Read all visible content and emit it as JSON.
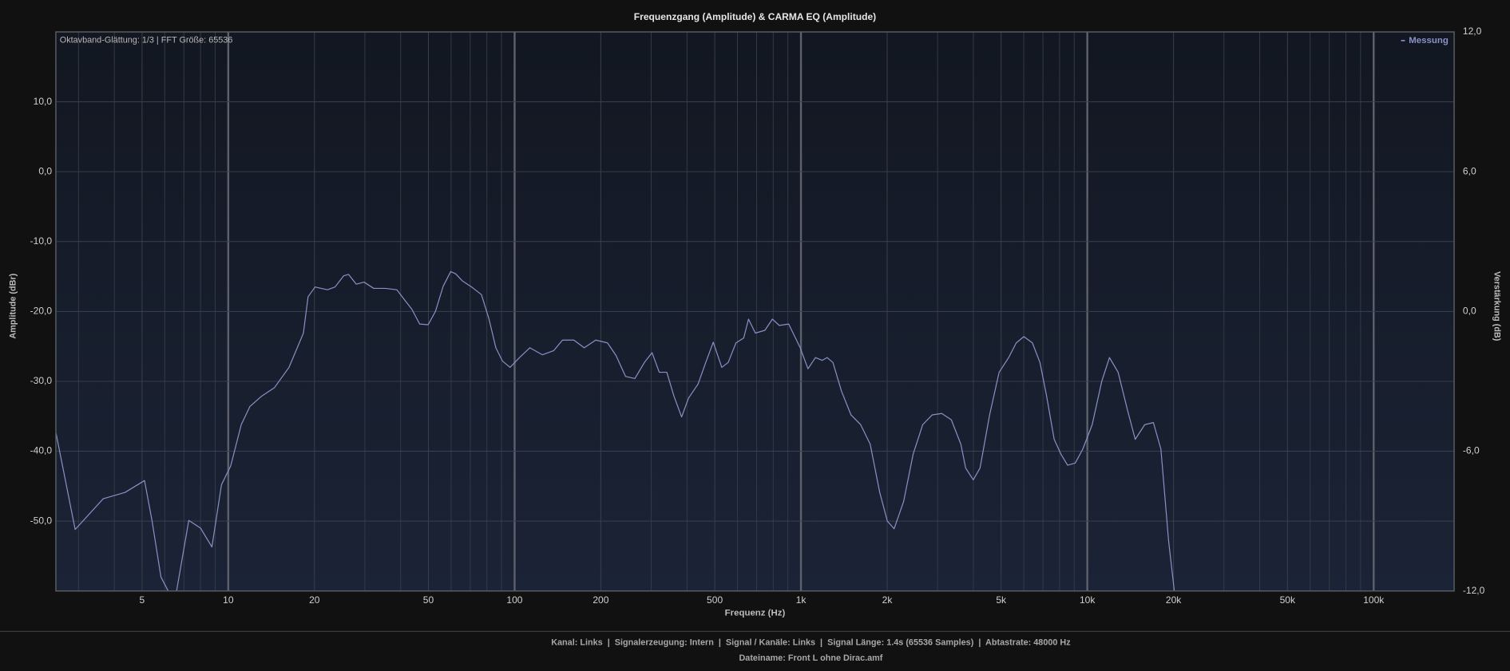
{
  "chart_data": {
    "type": "line",
    "title": "Frequenzgang (Amplitude) & CARMA EQ (Amplitude)",
    "annotation": "Oktavband-Glättung: 1/3 | FFT Größe: 65536",
    "xlabel": "Frequenz (Hz)",
    "ylabel": "Amplitude (dBr)",
    "y2label": "Verstärkung (dB)",
    "xscale": "log",
    "grid": true,
    "legend": "upper right",
    "xlim": [
      2.5,
      191000
    ],
    "xticks": [
      5,
      10,
      20,
      50,
      100,
      200,
      500,
      {
        "value": 1000,
        "label": "1k"
      },
      {
        "value": 2000,
        "label": "2k"
      },
      {
        "value": 5000,
        "label": "5k"
      },
      {
        "value": 10000,
        "label": "10k"
      },
      {
        "value": 20000,
        "label": "20k"
      },
      {
        "value": 50000,
        "label": "50k"
      },
      {
        "value": 100000,
        "label": "100k"
      }
    ],
    "xminorticks": [
      3,
      4,
      6,
      7,
      8,
      9,
      30,
      40,
      60,
      70,
      80,
      90,
      300,
      400,
      600,
      700,
      800,
      900,
      3000,
      4000,
      6000,
      7000,
      8000,
      9000,
      30000,
      40000,
      60000,
      70000,
      80000,
      90000
    ],
    "ylim": [
      -60,
      20
    ],
    "yticks": [
      {
        "value": -50,
        "label": "-50,0"
      },
      {
        "value": -40,
        "label": "-40,0"
      },
      {
        "value": -30,
        "label": "-30,0"
      },
      {
        "value": -20,
        "label": "-20,0"
      },
      {
        "value": -10,
        "label": "-10,0"
      },
      {
        "value": 0,
        "label": "0,0"
      },
      {
        "value": 10,
        "label": "10,0"
      }
    ],
    "y2lim": [
      -12,
      12
    ],
    "y2ticks": [
      {
        "value": -12,
        "label": "-12,0"
      },
      {
        "value": -6,
        "label": "-6,0"
      },
      {
        "value": 0,
        "label": "0,0"
      },
      {
        "value": 6,
        "label": "6,0"
      },
      {
        "value": 12,
        "label": "12,0"
      }
    ],
    "series": [
      {
        "name": "Messung",
        "color": "#8a91c4",
        "x": [
          2.5,
          2.92,
          3.66,
          4.36,
          5.1,
          5.42,
          5.82,
          6.17,
          6.6,
          7.28,
          8.0,
          8.77,
          9.47,
          10.2,
          11.1,
          11.9,
          13.1,
          14.5,
          16.3,
          18.3,
          19.0,
          20.1,
          22.2,
          23.6,
          25.3,
          26.3,
          28,
          29.8,
          32.2,
          35.4,
          38.8,
          41.2,
          43.8,
          46.6,
          49.9,
          52.9,
          56.3,
          59.8,
          62.2,
          65.6,
          70.8,
          76.6,
          81.4,
          86,
          90.7,
          96.4,
          104,
          113,
          125,
          137,
          147,
          161,
          175,
          192,
          211,
          226,
          244,
          263,
          284,
          302,
          320,
          340,
          360,
          383,
          405,
          437,
          465,
          494,
          529,
          557,
          593,
          631,
          656,
          693,
          748,
          795,
          840,
          906,
          994,
          1058,
          1124,
          1187,
          1234,
          1293,
          1385,
          1495,
          1616,
          1745,
          1884,
          2003,
          2115,
          2283,
          2465,
          2662,
          2874,
          3103,
          3350,
          3617,
          3759,
          3997,
          4221,
          4558,
          4921,
          5313,
          5646,
          6004,
          6430,
          6833,
          7208,
          7661,
          8084,
          8533,
          9071,
          9642,
          10400,
          11230,
          11950,
          12810,
          13830,
          14700,
          15870,
          17010,
          18070,
          19220,
          20130
        ],
        "values": [
          -37.3,
          -51.2,
          -46.8,
          -45.9,
          -44.2,
          -50,
          -58,
          -60,
          -60,
          -49.9,
          -51,
          -53.7,
          -44.8,
          -42.1,
          -36.2,
          -33.6,
          -32.1,
          -30.9,
          -28,
          -23.1,
          -17.9,
          -16.5,
          -16.9,
          -16.5,
          -14.9,
          -14.7,
          -16.1,
          -15.8,
          -16.7,
          -16.7,
          -16.9,
          -18.3,
          -19.7,
          -21.8,
          -21.9,
          -20,
          -16.4,
          -14.3,
          -14.6,
          -15.6,
          -16.5,
          -17.6,
          -21.1,
          -25.2,
          -27.1,
          -28,
          -26.6,
          -25.2,
          -26.2,
          -25.6,
          -24.1,
          -24.1,
          -25.2,
          -24.1,
          -24.5,
          -26.3,
          -29.3,
          -29.6,
          -27.3,
          -25.9,
          -28.7,
          -28.7,
          -32.1,
          -35.1,
          -32.4,
          -30.4,
          -27.3,
          -24.4,
          -28,
          -27.3,
          -24.5,
          -23.8,
          -21.1,
          -23.1,
          -22.7,
          -21.1,
          -22,
          -21.8,
          -25.2,
          -28.2,
          -26.6,
          -27,
          -26.6,
          -27.3,
          -31.4,
          -34.8,
          -36.2,
          -39,
          -45.9,
          -50,
          -51.1,
          -47.2,
          -40.4,
          -36.2,
          -34.8,
          -34.6,
          -35.5,
          -39,
          -42.4,
          -44.1,
          -42.4,
          -34.8,
          -28.7,
          -26.6,
          -24.5,
          -23.6,
          -24.5,
          -27.3,
          -32.1,
          -38.3,
          -40.4,
          -42,
          -41.7,
          -39.7,
          -36.2,
          -30,
          -26.6,
          -28.7,
          -34.2,
          -38.3,
          -36.2,
          -35.9,
          -39.7,
          -52.8,
          -60
        ]
      }
    ]
  },
  "footer": {
    "info": "Kanal: Links  |  Signalerzeugung: Intern  |  Signal / Kanäle: Links  |  Signal Länge: 1.4s (65536 Samples)  |  Abtastrate: 48000 Hz",
    "file": "Dateiname: Front L ohne Dirac.amf"
  }
}
